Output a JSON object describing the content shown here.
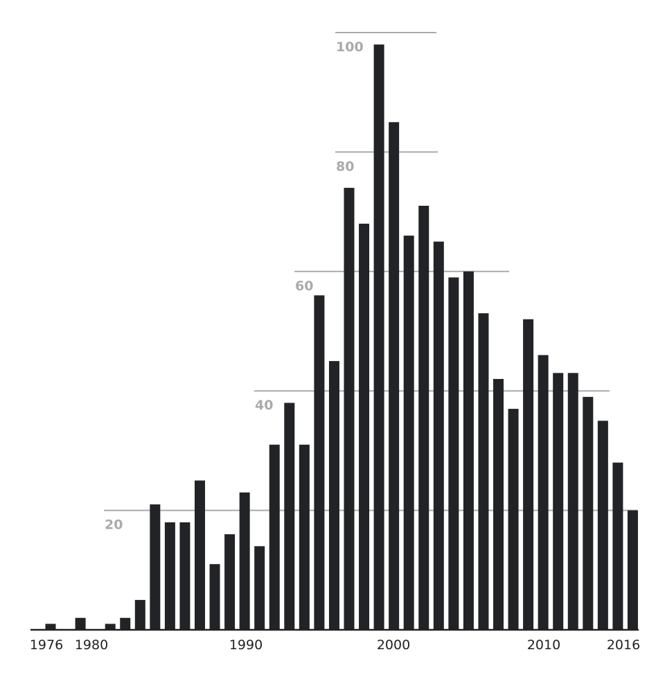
{
  "chart_data": {
    "type": "bar",
    "title": "",
    "xlabel": "",
    "ylabel": "",
    "ylim": [
      0,
      100
    ],
    "grid": true,
    "gridlines": [
      20,
      40,
      60,
      80,
      100
    ],
    "x_tick_labels": [
      "1976",
      "1980",
      "1990",
      "2000",
      "2010",
      "2016"
    ],
    "categories": [
      1977,
      1978,
      1979,
      1980,
      1981,
      1982,
      1983,
      1984,
      1985,
      1986,
      1987,
      1988,
      1989,
      1990,
      1991,
      1992,
      1993,
      1994,
      1995,
      1996,
      1997,
      1998,
      1999,
      2000,
      2001,
      2002,
      2003,
      2004,
      2005,
      2006,
      2007,
      2008,
      2009,
      2010,
      2011,
      2012,
      2013,
      2014,
      2015,
      2016
    ],
    "values": [
      1,
      0,
      2,
      0,
      1,
      2,
      5,
      21,
      18,
      18,
      25,
      11,
      16,
      23,
      14,
      31,
      38,
      31,
      56,
      45,
      74,
      68,
      98,
      85,
      66,
      71,
      65,
      59,
      60,
      53,
      42,
      37,
      52,
      46,
      43,
      43,
      39,
      35,
      28,
      20
    ],
    "colors": {
      "bar": "#222326",
      "grid": "#aaaaaa",
      "grid_label": "#aaaaaa",
      "axis": "#222222"
    }
  }
}
